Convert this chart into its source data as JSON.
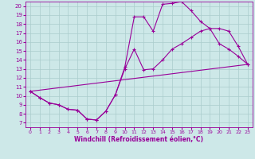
{
  "title": "",
  "xlabel": "Windchill (Refroidissement éolien,°C)",
  "ylabel": "",
  "bg_color": "#cde8e8",
  "line_color": "#990099",
  "grid_color": "#aacccc",
  "xlim": [
    -0.5,
    23.5
  ],
  "ylim": [
    6.5,
    20.5
  ],
  "xticks": [
    0,
    1,
    2,
    3,
    4,
    5,
    6,
    7,
    8,
    9,
    10,
    11,
    12,
    13,
    14,
    15,
    16,
    17,
    18,
    19,
    20,
    21,
    22,
    23
  ],
  "yticks": [
    7,
    8,
    9,
    10,
    11,
    12,
    13,
    14,
    15,
    16,
    17,
    18,
    19,
    20
  ],
  "line1_x": [
    0,
    1,
    2,
    3,
    4,
    5,
    6,
    7,
    8,
    9,
    10,
    11,
    12,
    13,
    14,
    15,
    16,
    17,
    18,
    19,
    20,
    21,
    22,
    23
  ],
  "line1_y": [
    10.5,
    9.8,
    9.2,
    9.0,
    8.5,
    8.4,
    7.4,
    7.3,
    8.3,
    10.1,
    13.2,
    18.8,
    18.8,
    17.2,
    20.2,
    20.3,
    20.5,
    19.5,
    18.3,
    17.5,
    15.8,
    15.2,
    14.4,
    13.5
  ],
  "line2_x": [
    0,
    1,
    2,
    3,
    4,
    5,
    6,
    7,
    8,
    9,
    10,
    11,
    12,
    13,
    14,
    15,
    16,
    17,
    18,
    19,
    20,
    21,
    22,
    23
  ],
  "line2_y": [
    10.5,
    9.8,
    9.2,
    9.0,
    8.5,
    8.4,
    7.4,
    7.3,
    8.3,
    10.1,
    13.0,
    15.2,
    12.9,
    13.0,
    14.0,
    15.2,
    15.8,
    16.5,
    17.2,
    17.5,
    17.5,
    17.2,
    15.5,
    13.5
  ],
  "line3_x": [
    0,
    23
  ],
  "line3_y": [
    10.5,
    13.5
  ]
}
